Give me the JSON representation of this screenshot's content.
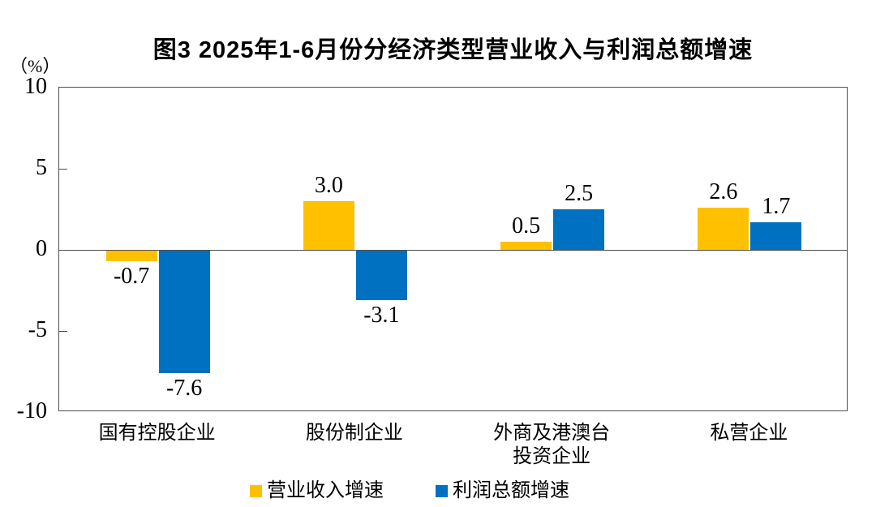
{
  "chart_data": {
    "type": "bar",
    "title": "图3  2025年1-6月份分经济类型营业收入与利润总额增速",
    "unit_label": "（%）",
    "categories": [
      "国有控股企业",
      "股份制企业",
      "外商及港澳台\n投资企业",
      "私营企业"
    ],
    "series": [
      {
        "name": "营业收入增速",
        "color": "#FFC000",
        "values": [
          -0.7,
          3.0,
          0.5,
          2.6
        ],
        "labels": [
          "-0.7",
          "3.0",
          "0.5",
          "2.6"
        ]
      },
      {
        "name": "利润总额增速",
        "color": "#0070C0",
        "values": [
          -7.6,
          -3.1,
          2.5,
          1.7
        ],
        "labels": [
          "-7.6",
          "-3.1",
          "2.5",
          "1.7"
        ]
      }
    ],
    "ylim": [
      -10,
      10
    ],
    "yticks": [
      10,
      5,
      0,
      -5,
      -10
    ],
    "grid": false,
    "legend_position": "bottom",
    "axis_color": "#4d4d4d"
  }
}
